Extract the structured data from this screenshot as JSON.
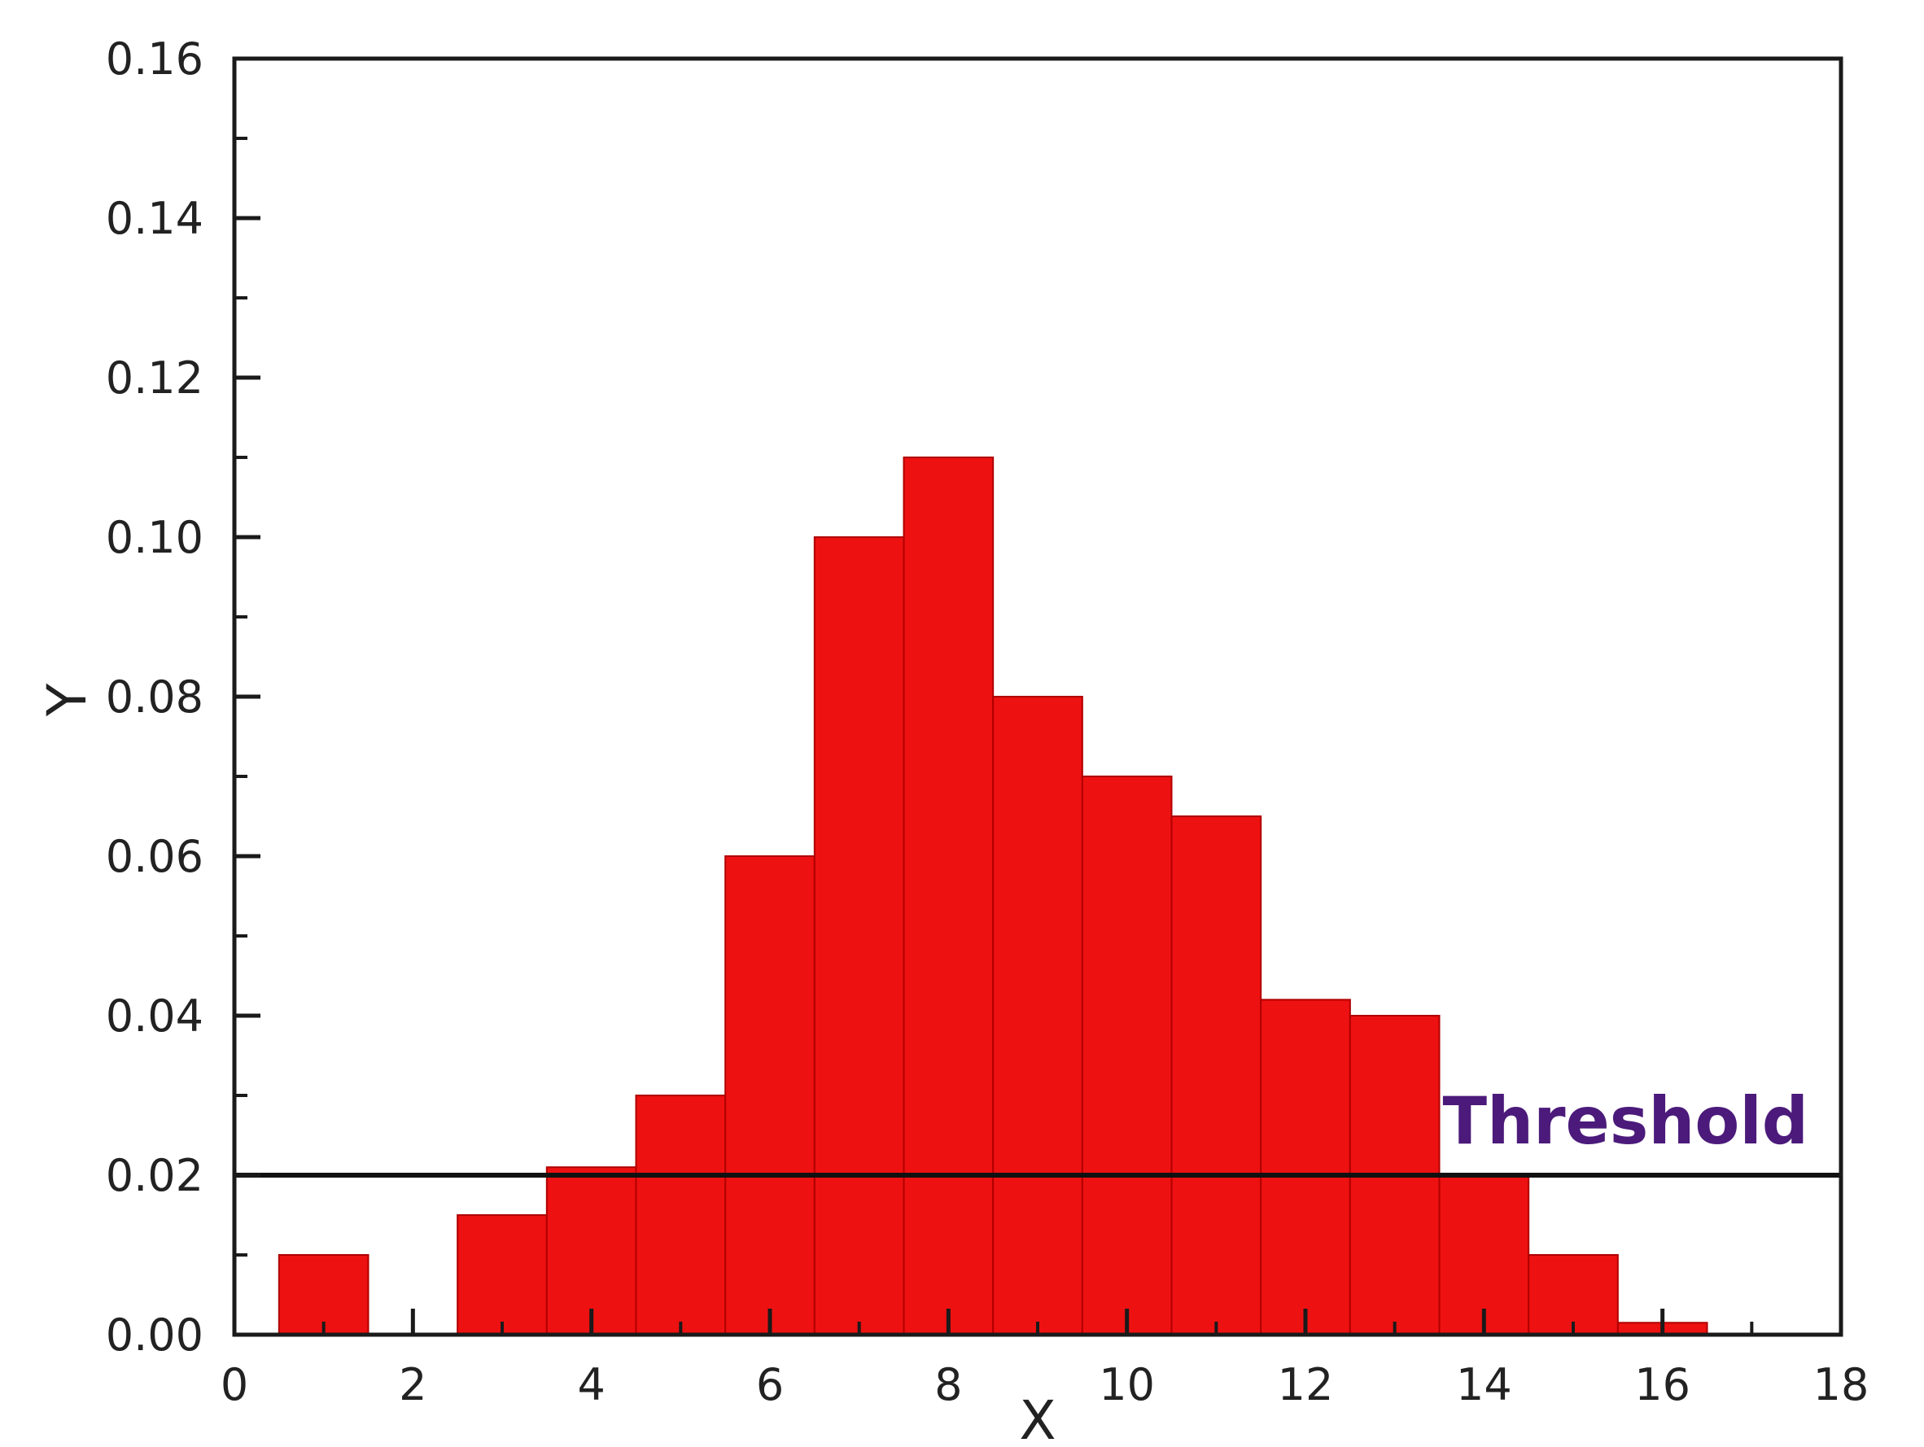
{
  "chart_data": {
    "type": "bar",
    "x": [
      1,
      3,
      4,
      5,
      6,
      7,
      8,
      9,
      10,
      11,
      12,
      13,
      14,
      15,
      16
    ],
    "values": [
      0.01,
      0.015,
      0.021,
      0.03,
      0.06,
      0.1,
      0.11,
      0.08,
      0.07,
      0.065,
      0.042,
      0.04,
      0.02,
      0.01,
      0.0015
    ],
    "bin_width": 1,
    "xlabel": "X",
    "ylabel": "Y",
    "xlim": [
      0,
      18
    ],
    "ylim": [
      0,
      0.16
    ],
    "xticks": [
      0,
      2,
      4,
      6,
      8,
      10,
      12,
      14,
      16,
      18
    ],
    "xtick_labels": [
      "0",
      "2",
      "4",
      "6",
      "8",
      "10",
      "12",
      "14",
      "16",
      "18"
    ],
    "yticks": [
      0,
      0.02,
      0.04,
      0.06,
      0.08,
      0.1,
      0.12,
      0.14,
      0.16
    ],
    "ytick_labels": [
      "0.00",
      "0.02",
      "0.04",
      "0.06",
      "0.08",
      "0.10",
      "0.12",
      "0.14",
      "0.16"
    ],
    "threshold": {
      "value": 0.02,
      "label": "Threshold"
    },
    "grid": false,
    "colors": {
      "bar_fill": "#ee1111",
      "bar_edge": "#b00000",
      "axis": "#1a1a1a",
      "threshold_line": "#111111",
      "threshold_label": "#4b1a7a"
    }
  }
}
